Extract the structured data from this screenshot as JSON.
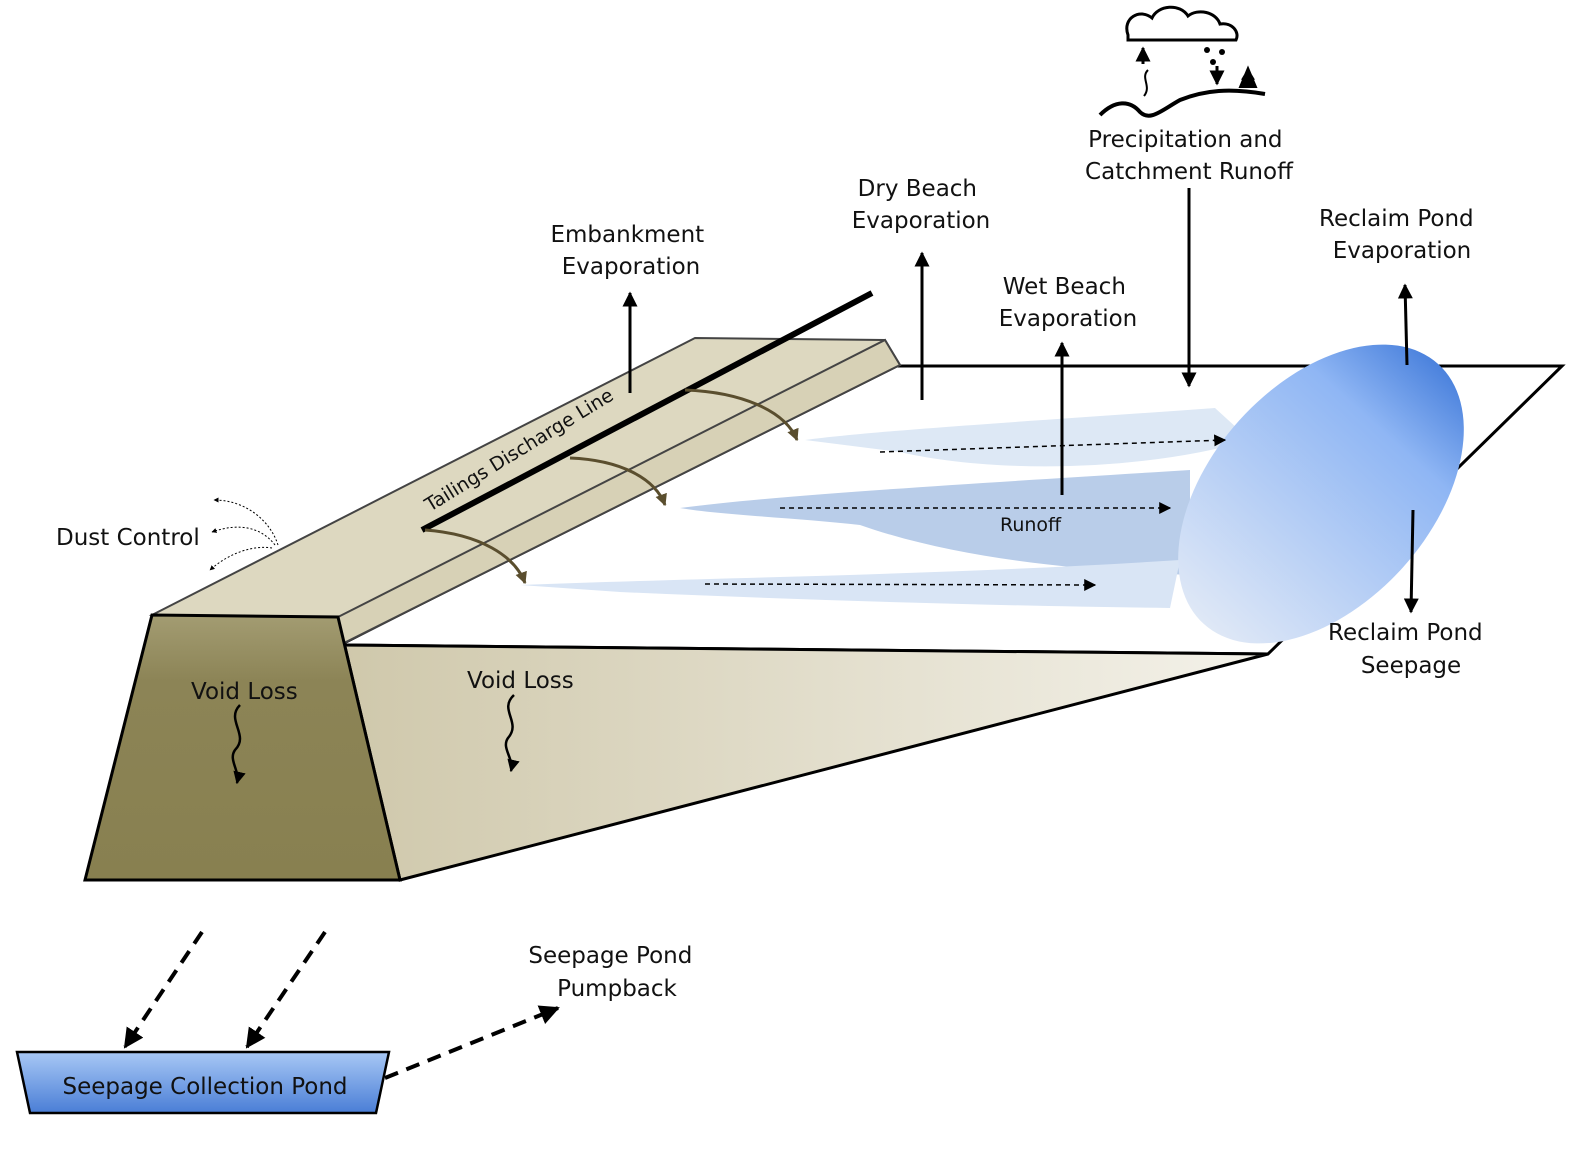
{
  "labels": {
    "embankment_evap": [
      "Embankment",
      "Evaporation"
    ],
    "dry_beach_evap": [
      "Dry Beach",
      "Evaporation"
    ],
    "wet_beach_evap": [
      "Wet Beach",
      "Evaporation"
    ],
    "precipitation": [
      "Precipitation and",
      "Catchment Runoff"
    ],
    "reclaim_pond_evap": [
      "Reclaim Pond",
      "Evaporation"
    ],
    "reclaim_pond_seepage": [
      "Reclaim Pond",
      "Seepage"
    ],
    "tailings_discharge_line": "Tailings Discharge Line",
    "dust_control": "Dust Control",
    "runoff": "Runoff",
    "void_loss_embankment": "Void Loss",
    "void_loss_basin": "Void Loss",
    "seepage_pond_pumpback": [
      "Seepage Pond",
      "Pumpback"
    ],
    "seepage_collection_pond": "Seepage Collection Pond"
  },
  "colors": {
    "embankment_front": "#8c8456",
    "embankment_top": "#ddd8c0",
    "basin_wall": "#d8d3bb",
    "water_light": "#dde8f5",
    "water_mid": "#b8cde8",
    "reclaim_pond": "#6b9be6",
    "seepage_pond": "#5b8fe0",
    "line": "#000000"
  },
  "icons": [
    "weather-cycle-icon"
  ]
}
